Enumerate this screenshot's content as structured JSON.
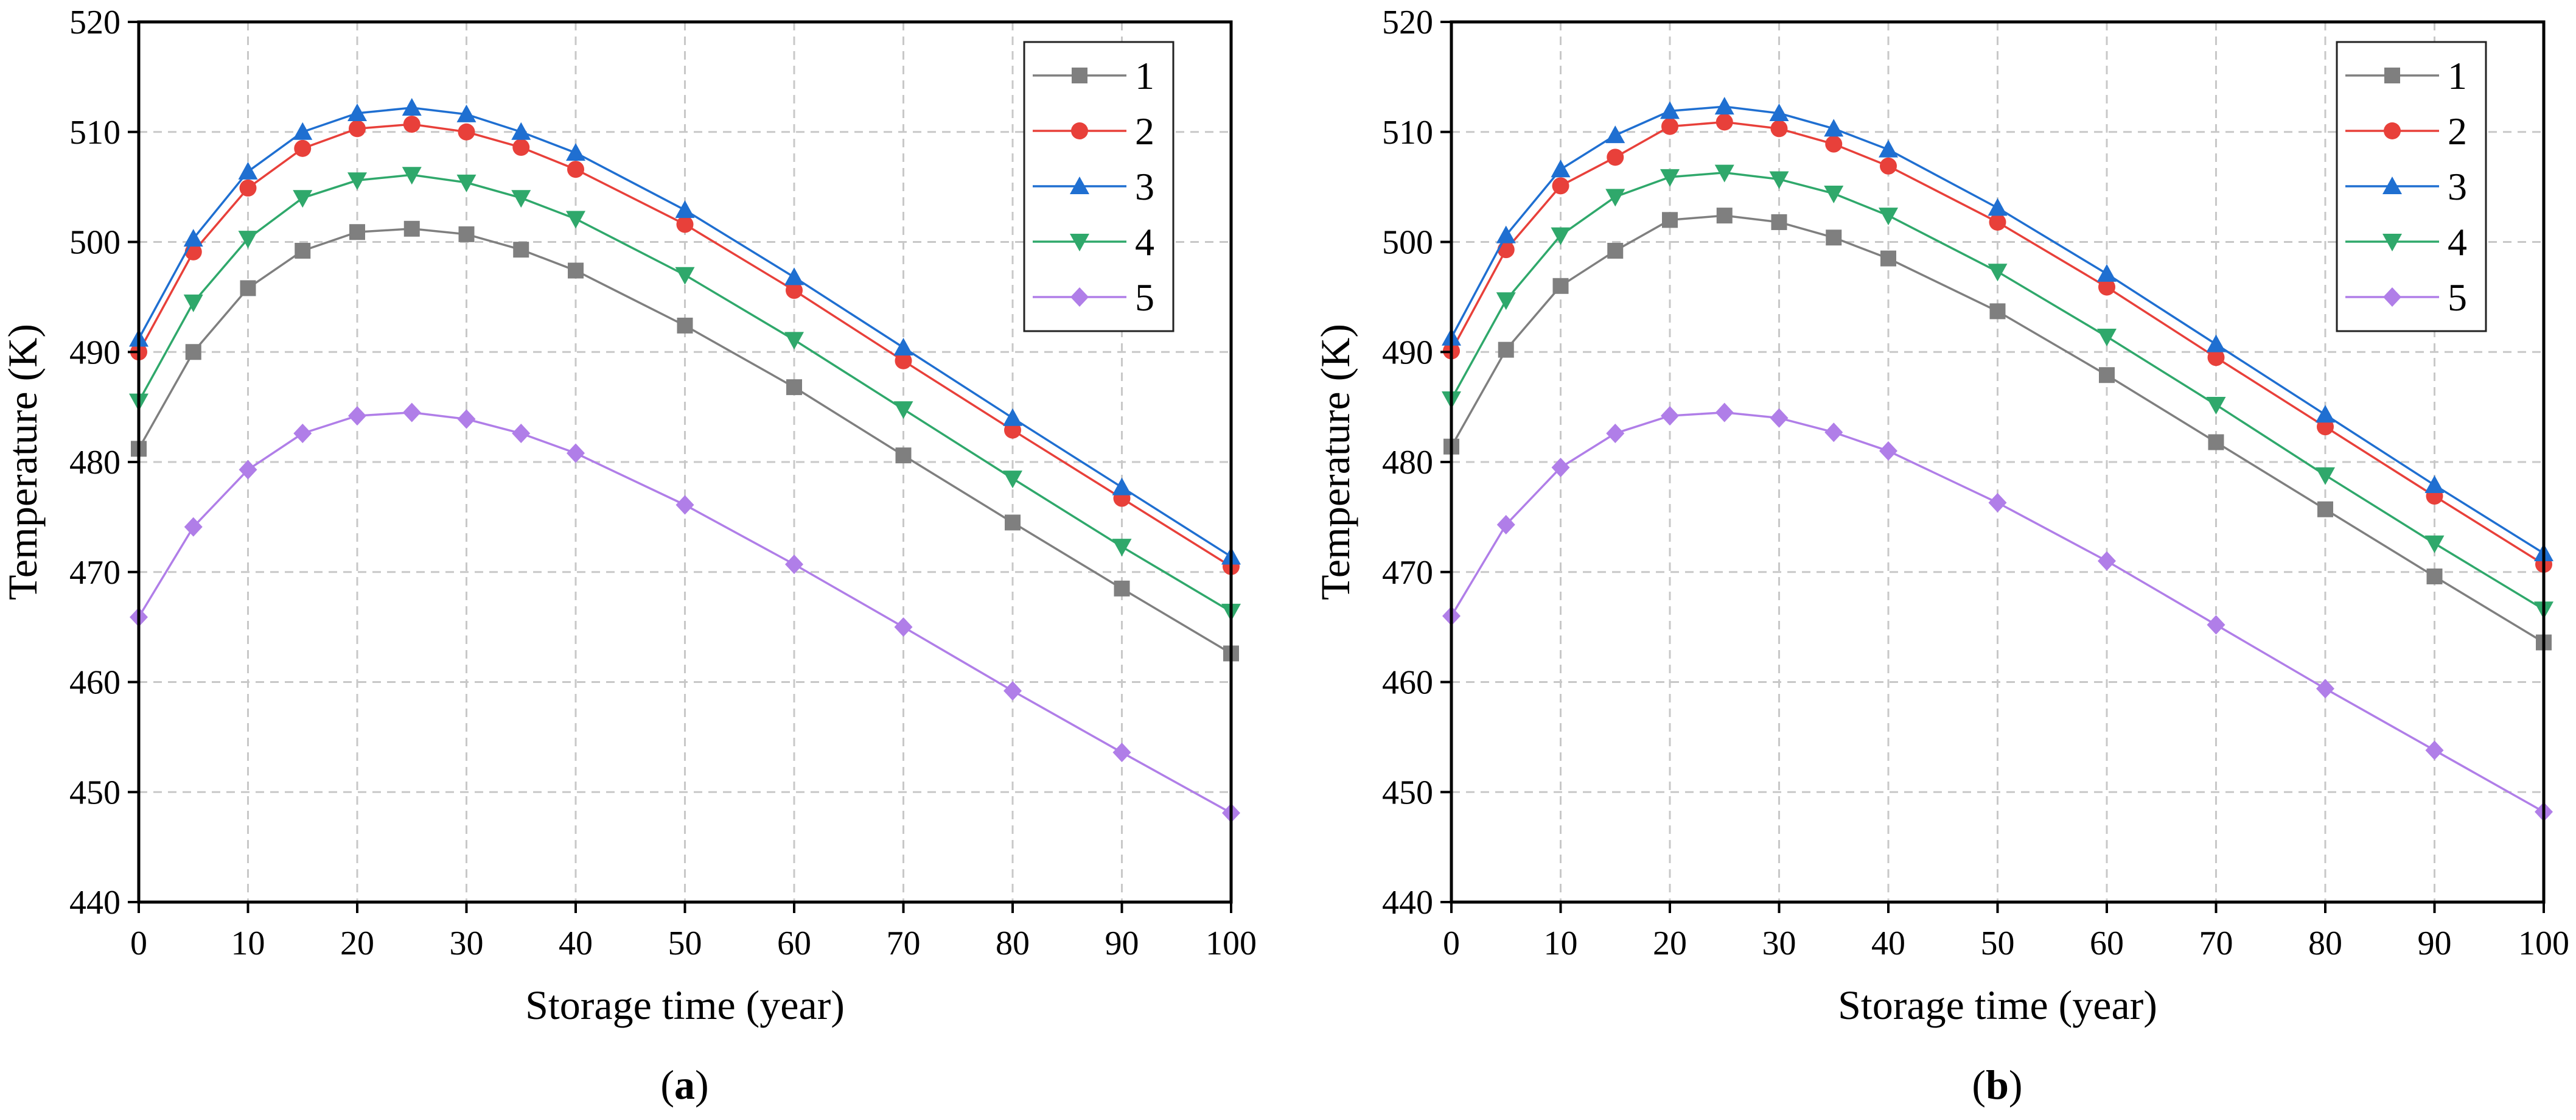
{
  "chart_data": [
    {
      "type": "line",
      "panel_label": "a",
      "xlabel": "Storage time (year)",
      "ylabel": "Temperature (K)",
      "xlim": [
        0,
        100
      ],
      "ylim": [
        440,
        520
      ],
      "xticks": [
        0,
        10,
        20,
        30,
        40,
        50,
        60,
        70,
        80,
        90,
        100
      ],
      "yticks": [
        440,
        450,
        460,
        470,
        480,
        490,
        500,
        510,
        520
      ],
      "grid": true,
      "legend_position": "top-right",
      "x": [
        0,
        5,
        10,
        15,
        20,
        25,
        30,
        35,
        40,
        50,
        60,
        70,
        80,
        90,
        100
      ],
      "series": [
        {
          "name": "1",
          "color": "#7f7f7f",
          "marker": "square",
          "values": [
            481.2,
            490.0,
            495.8,
            499.2,
            500.9,
            501.2,
            500.7,
            499.3,
            497.4,
            492.4,
            486.8,
            480.6,
            474.5,
            468.5,
            462.6
          ]
        },
        {
          "name": "2",
          "color": "#e8403a",
          "marker": "circle",
          "values": [
            490.0,
            499.1,
            504.9,
            508.5,
            510.3,
            510.7,
            510.0,
            508.6,
            506.6,
            501.6,
            495.6,
            489.2,
            482.9,
            476.7,
            470.5
          ]
        },
        {
          "name": "3",
          "color": "#1f6fd1",
          "marker": "triangle-up",
          "values": [
            491.2,
            500.3,
            506.4,
            510.0,
            511.7,
            512.2,
            511.6,
            510.0,
            508.1,
            502.9,
            496.8,
            490.4,
            484.0,
            477.7,
            471.4
          ]
        },
        {
          "name": "4",
          "color": "#2fa86b",
          "marker": "triangle-down",
          "values": [
            485.5,
            494.5,
            500.3,
            504.0,
            505.6,
            506.1,
            505.4,
            504.0,
            502.1,
            497.0,
            491.1,
            484.8,
            478.5,
            472.3,
            466.4
          ]
        },
        {
          "name": "5",
          "color": "#b07ee8",
          "marker": "diamond",
          "values": [
            465.9,
            474.1,
            479.3,
            482.6,
            484.2,
            484.5,
            483.9,
            482.6,
            480.8,
            476.1,
            470.7,
            465.0,
            459.2,
            453.6,
            448.1
          ]
        }
      ]
    },
    {
      "type": "line",
      "panel_label": "b",
      "xlabel": "Storage time (year)",
      "ylabel": "Temperature (K)",
      "xlim": [
        0,
        100
      ],
      "ylim": [
        440,
        520
      ],
      "xticks": [
        0,
        10,
        20,
        30,
        40,
        50,
        60,
        70,
        80,
        90,
        100
      ],
      "yticks": [
        440,
        450,
        460,
        470,
        480,
        490,
        500,
        510,
        520
      ],
      "grid": true,
      "legend_position": "top-right",
      "x": [
        0,
        5,
        10,
        15,
        20,
        25,
        30,
        35,
        40,
        50,
        60,
        70,
        80,
        90,
        100
      ],
      "series": [
        {
          "name": "1",
          "color": "#7f7f7f",
          "marker": "square",
          "values": [
            481.4,
            490.2,
            496.0,
            499.2,
            502.0,
            502.4,
            501.8,
            500.4,
            498.5,
            493.7,
            487.9,
            481.8,
            475.7,
            469.6,
            463.6
          ]
        },
        {
          "name": "2",
          "color": "#e8403a",
          "marker": "circle",
          "values": [
            490.1,
            499.3,
            505.1,
            507.7,
            510.5,
            510.9,
            510.3,
            508.9,
            506.9,
            501.8,
            495.9,
            489.5,
            483.2,
            476.9,
            470.7
          ]
        },
        {
          "name": "3",
          "color": "#1f6fd1",
          "marker": "triangle-up",
          "values": [
            491.3,
            500.6,
            506.6,
            509.7,
            511.9,
            512.3,
            511.7,
            510.3,
            508.4,
            503.1,
            497.1,
            490.7,
            484.3,
            477.9,
            471.7
          ]
        },
        {
          "name": "4",
          "color": "#2fa86b",
          "marker": "triangle-down",
          "values": [
            485.7,
            494.7,
            500.6,
            504.1,
            505.9,
            506.3,
            505.7,
            504.4,
            502.4,
            497.3,
            491.4,
            485.2,
            478.8,
            472.6,
            466.6
          ]
        },
        {
          "name": "5",
          "color": "#b07ee8",
          "marker": "diamond",
          "values": [
            466.0,
            474.3,
            479.5,
            482.6,
            484.2,
            484.5,
            484.0,
            482.7,
            481.0,
            476.3,
            471.0,
            465.2,
            459.4,
            453.8,
            448.2
          ]
        }
      ]
    }
  ]
}
